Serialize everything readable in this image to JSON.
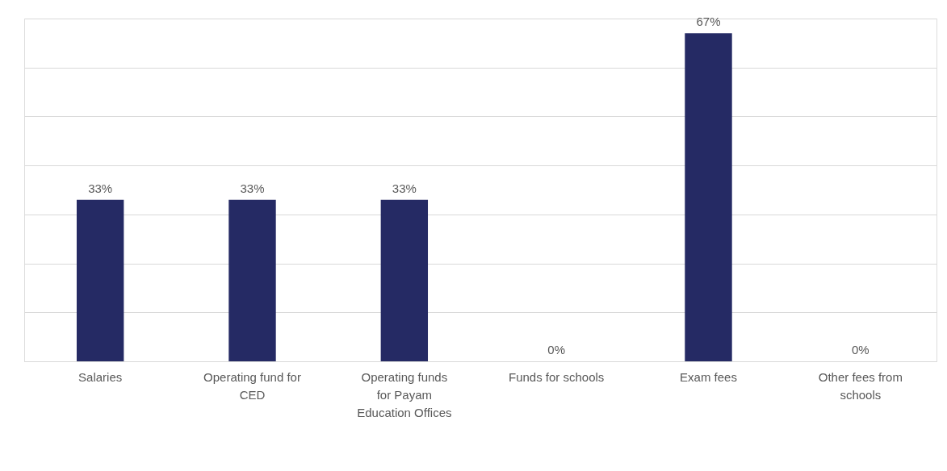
{
  "chart_data": {
    "type": "bar",
    "categories": [
      "Salaries",
      "Operating fund for CED",
      "Operating funds for Payam Education Offices",
      "Funds for schools",
      "Exam fees",
      "Other fees from schools"
    ],
    "values": [
      33,
      33,
      33,
      0,
      67,
      0
    ],
    "value_labels": [
      "33%",
      "33%",
      "33%",
      "0%",
      "67%",
      "0%"
    ],
    "color": "#252a64",
    "ylim": [
      0,
      70
    ],
    "yticks": [
      {
        "value": 0,
        "label": null
      },
      {
        "value": 10,
        "label": null
      },
      {
        "value": 20,
        "label": null
      },
      {
        "value": 30,
        "label": null
      },
      {
        "value": 40,
        "label": null
      },
      {
        "value": 50,
        "label": null
      },
      {
        "value": 60,
        "label": null
      },
      {
        "value": 70,
        "label": null
      }
    ],
    "tick_labels": "x",
    "grid": "y"
  }
}
